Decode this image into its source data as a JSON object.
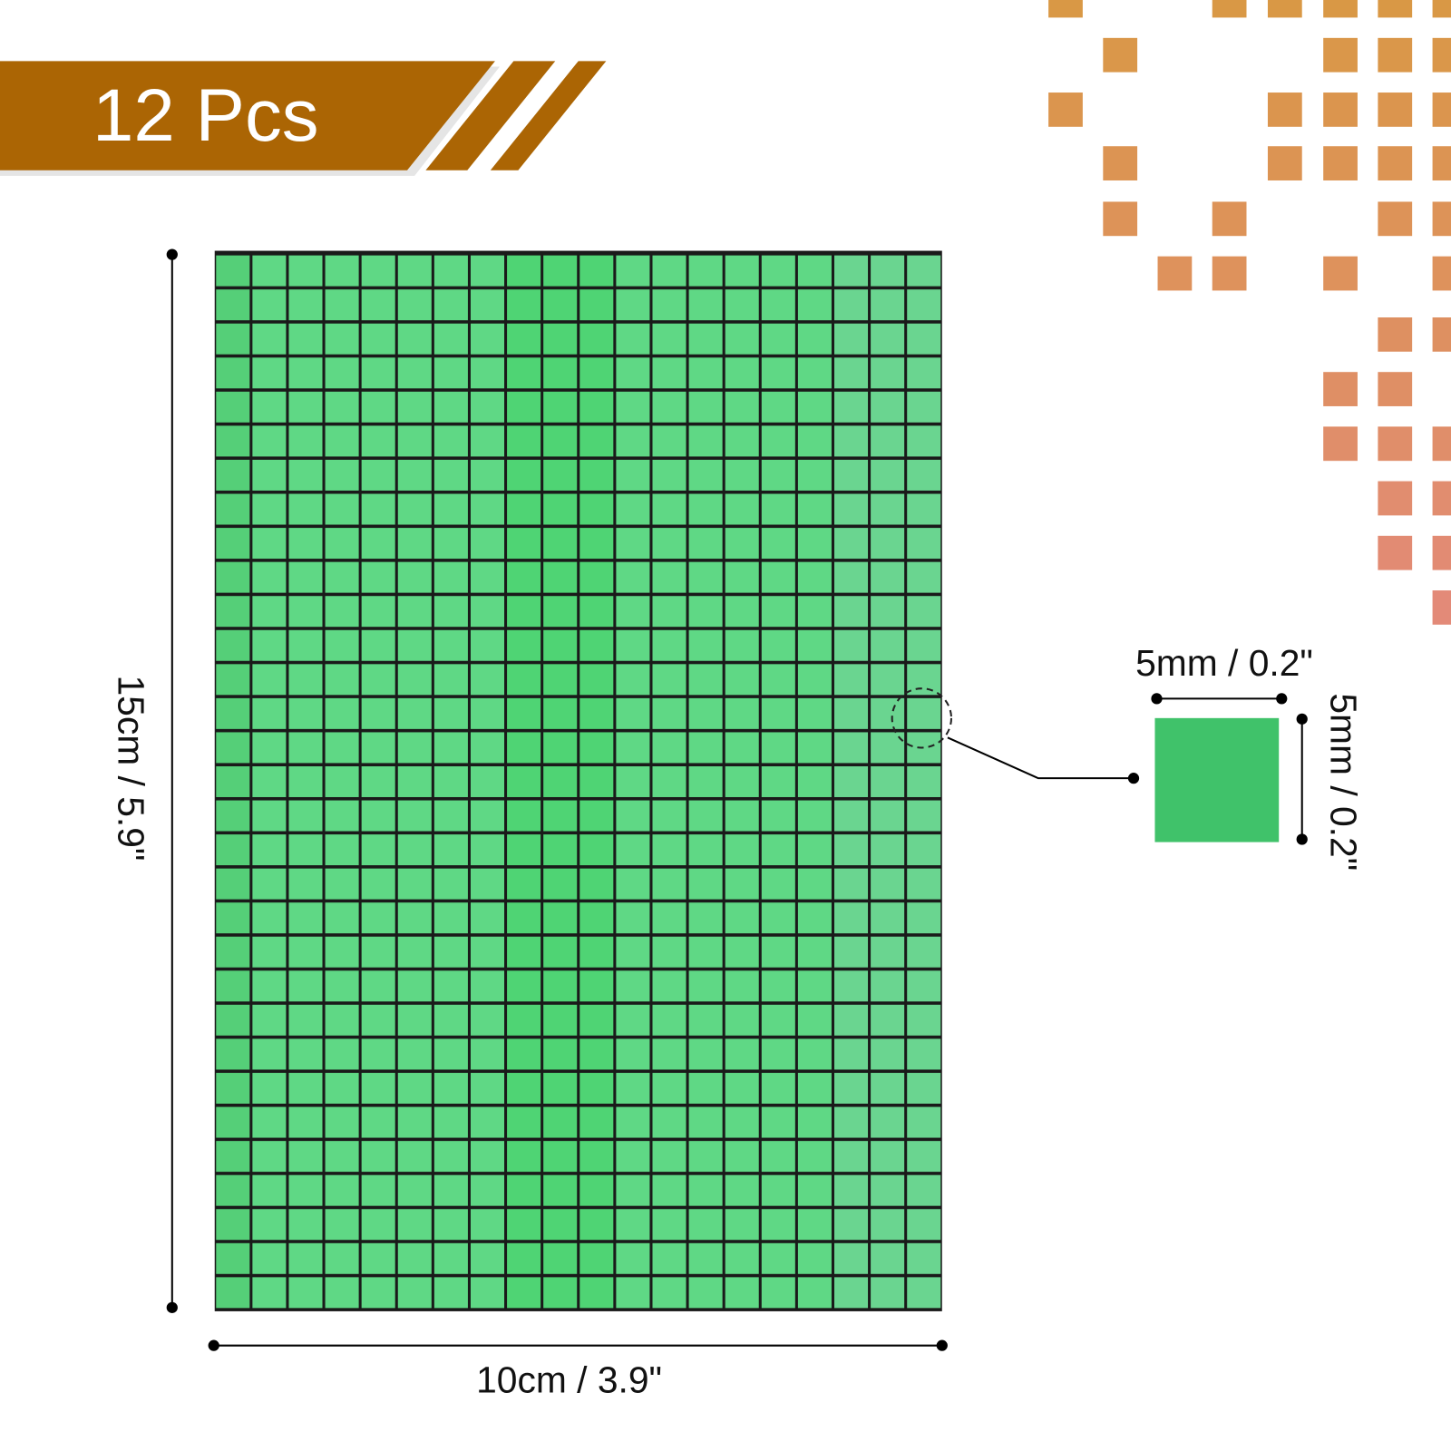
{
  "banner": {
    "text": "12 Pcs"
  },
  "dimensions": {
    "height": "15cm / 5.9\"",
    "width": "10cm / 3.9\"",
    "piece_width": "5mm / 0.2\"",
    "piece_height": "5mm / 0.2\""
  }
}
